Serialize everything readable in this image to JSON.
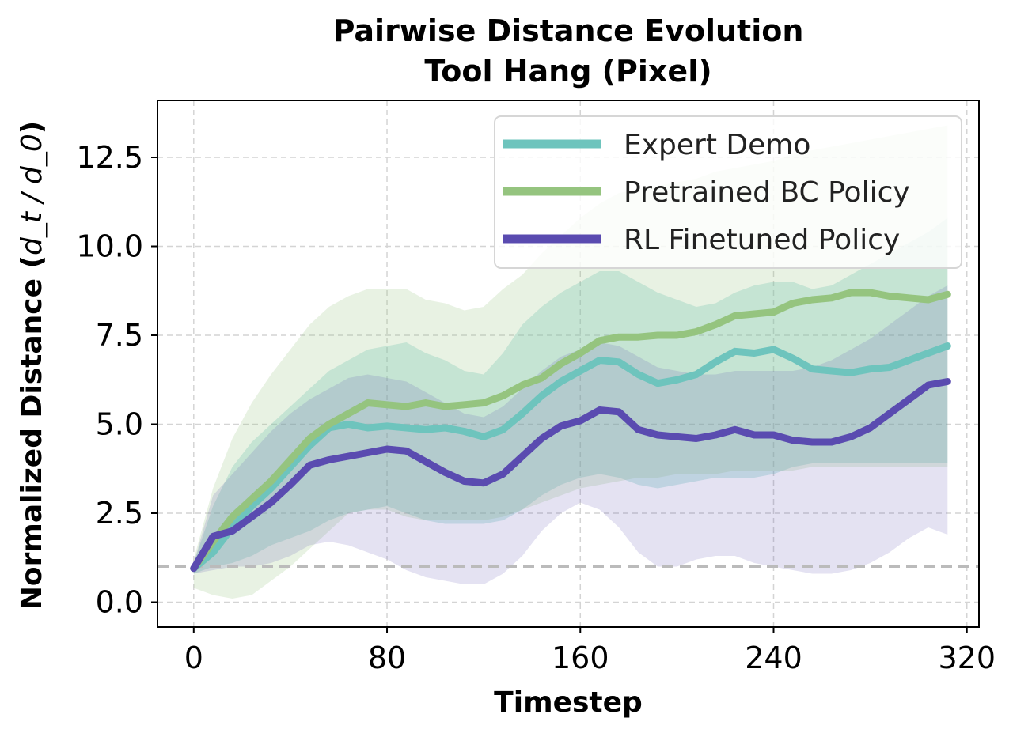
{
  "chart_data": {
    "type": "line",
    "title": "Pairwise Distance Evolution",
    "subtitle": "Tool Hang (Pixel)",
    "xlabel": "Timestep",
    "ylabel_main": "Normalized Distance (",
    "ylabel_math": "d_t / d_0",
    "ylabel_close": ")",
    "xlim": [
      -15,
      325
    ],
    "ylim": [
      -0.7,
      14.1
    ],
    "xticks": [
      0,
      80,
      160,
      240,
      320
    ],
    "xtick_labels": [
      "0",
      "80",
      "160",
      "240",
      "320"
    ],
    "yticks": [
      0.0,
      2.5,
      5.0,
      7.5,
      10.0,
      12.5
    ],
    "ytick_labels": [
      "0.0",
      "2.5",
      "5.0",
      "7.5",
      "10.0",
      "12.5"
    ],
    "grid": true,
    "legend_position": "top-right",
    "reference_line": {
      "y": 1.0,
      "style": "dashed",
      "color": "#bbbbbb"
    },
    "x": [
      0,
      8,
      16,
      24,
      32,
      40,
      48,
      56,
      64,
      72,
      80,
      88,
      96,
      104,
      112,
      120,
      128,
      136,
      144,
      152,
      160,
      168,
      176,
      184,
      192,
      200,
      208,
      216,
      224,
      232,
      240,
      248,
      256,
      264,
      272,
      280,
      288,
      296,
      304,
      312
    ],
    "series": [
      {
        "name": "Expert Demo",
        "color": "#6ec4bd",
        "values": [
          0.95,
          1.4,
          2.1,
          2.7,
          3.2,
          3.8,
          4.4,
          4.9,
          5.0,
          4.9,
          4.95,
          4.9,
          4.85,
          4.9,
          4.8,
          4.65,
          4.85,
          5.3,
          5.8,
          6.2,
          6.5,
          6.8,
          6.75,
          6.4,
          6.15,
          6.25,
          6.4,
          6.75,
          7.05,
          7.0,
          7.1,
          6.85,
          6.55,
          6.5,
          6.45,
          6.55,
          6.6,
          6.8,
          7.0,
          7.2
        ],
        "upper": [
          1.1,
          2.7,
          3.8,
          4.5,
          5.0,
          5.5,
          6.0,
          6.5,
          6.8,
          7.1,
          7.2,
          7.3,
          7.0,
          6.8,
          6.5,
          6.4,
          7.0,
          7.8,
          8.3,
          8.7,
          9.0,
          9.3,
          9.3,
          9.0,
          8.7,
          8.5,
          8.3,
          8.4,
          8.7,
          8.9,
          9.0,
          9.0,
          8.8,
          8.9,
          9.2,
          9.5,
          9.8,
          10.1,
          10.4,
          10.8
        ],
        "lower": [
          0.8,
          1.0,
          1.1,
          1.3,
          1.6,
          1.8,
          2.0,
          2.3,
          2.5,
          2.6,
          2.7,
          2.5,
          2.3,
          2.2,
          2.2,
          2.2,
          2.3,
          2.6,
          3.0,
          3.3,
          3.5,
          3.6,
          3.5,
          3.3,
          3.2,
          3.3,
          3.4,
          3.5,
          3.5,
          3.5,
          3.6,
          3.8,
          3.9,
          3.9,
          3.9,
          3.9,
          3.9,
          3.9,
          3.9,
          3.9
        ]
      },
      {
        "name": "Pretrained BC Policy",
        "color": "#95c47f",
        "values": [
          0.95,
          1.7,
          2.4,
          2.9,
          3.4,
          4.0,
          4.6,
          5.0,
          5.3,
          5.6,
          5.55,
          5.5,
          5.6,
          5.5,
          5.55,
          5.6,
          5.8,
          6.1,
          6.3,
          6.7,
          7.0,
          7.35,
          7.45,
          7.45,
          7.5,
          7.5,
          7.6,
          7.8,
          8.05,
          8.1,
          8.15,
          8.4,
          8.5,
          8.55,
          8.7,
          8.7,
          8.6,
          8.55,
          8.5,
          8.65
        ],
        "upper": [
          1.2,
          3.2,
          4.6,
          5.6,
          6.4,
          7.1,
          7.8,
          8.3,
          8.6,
          8.8,
          8.8,
          8.8,
          8.5,
          8.4,
          8.2,
          8.3,
          8.8,
          9.2,
          9.8,
          10.3,
          10.8,
          11.2,
          11.5,
          11.6,
          11.7,
          11.8,
          11.9,
          12.1,
          12.2,
          12.3,
          12.4,
          12.6,
          12.7,
          12.8,
          12.9,
          13.0,
          13.1,
          13.2,
          13.3,
          13.4
        ],
        "lower": [
          0.4,
          0.2,
          0.1,
          0.2,
          0.6,
          1.0,
          1.5,
          2.0,
          2.5,
          2.6,
          2.6,
          2.4,
          2.3,
          2.3,
          2.3,
          2.3,
          2.4,
          2.6,
          2.8,
          3.0,
          3.2,
          3.3,
          3.4,
          3.5,
          3.5,
          3.6,
          3.6,
          3.6,
          3.7,
          3.7,
          3.7,
          3.7,
          3.8,
          3.8,
          3.8,
          3.8,
          3.8,
          3.8,
          3.8,
          3.8
        ]
      },
      {
        "name": "RL Finetuned Policy",
        "color": "#5a4bb0",
        "values": [
          0.95,
          1.85,
          2.0,
          2.4,
          2.8,
          3.3,
          3.85,
          4.0,
          4.1,
          4.2,
          4.3,
          4.25,
          3.95,
          3.65,
          3.4,
          3.35,
          3.6,
          4.1,
          4.6,
          4.95,
          5.1,
          5.4,
          5.35,
          4.85,
          4.7,
          4.65,
          4.6,
          4.7,
          4.85,
          4.7,
          4.7,
          4.55,
          4.5,
          4.5,
          4.65,
          4.9,
          5.3,
          5.7,
          6.1,
          6.2
        ],
        "upper": [
          1.1,
          3.0,
          3.6,
          4.2,
          4.8,
          5.3,
          5.7,
          6.0,
          6.3,
          6.4,
          6.3,
          6.2,
          5.9,
          5.6,
          5.3,
          5.2,
          5.5,
          6.0,
          6.5,
          6.9,
          7.1,
          7.3,
          7.2,
          6.9,
          6.6,
          6.5,
          6.4,
          6.4,
          6.5,
          6.5,
          6.5,
          6.5,
          6.6,
          6.8,
          7.1,
          7.4,
          7.8,
          8.2,
          8.6,
          8.9
        ],
        "lower": [
          0.8,
          0.9,
          1.0,
          1.0,
          1.1,
          1.3,
          1.6,
          1.7,
          1.6,
          1.4,
          1.2,
          0.9,
          0.7,
          0.6,
          0.5,
          0.5,
          0.8,
          1.3,
          2.0,
          2.5,
          2.8,
          2.6,
          2.1,
          1.4,
          1.0,
          1.0,
          1.2,
          1.3,
          1.3,
          1.1,
          1.0,
          0.9,
          0.8,
          0.8,
          0.9,
          1.1,
          1.4,
          1.8,
          2.1,
          1.9
        ]
      }
    ]
  }
}
